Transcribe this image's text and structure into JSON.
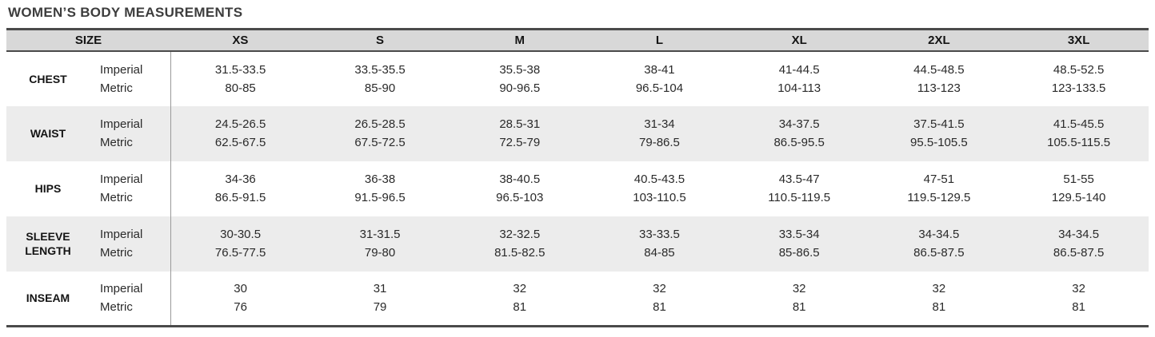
{
  "title": "WOMEN’S BODY MEASUREMENTS",
  "table": {
    "size_header": "SIZE",
    "sizes": [
      "XS",
      "S",
      "M",
      "L",
      "XL",
      "2XL",
      "3XL"
    ],
    "unit_labels": {
      "imperial": "Imperial",
      "metric": "Metric"
    },
    "rows": [
      {
        "label": "CHEST",
        "imperial": [
          "31.5-33.5",
          "33.5-35.5",
          "35.5-38",
          "38-41",
          "41-44.5",
          "44.5-48.5",
          "48.5-52.5"
        ],
        "metric": [
          "80-85",
          "85-90",
          "90-96.5",
          "96.5-104",
          "104-113",
          "113-123",
          "123-133.5"
        ]
      },
      {
        "label": "WAIST",
        "imperial": [
          "24.5-26.5",
          "26.5-28.5",
          "28.5-31",
          "31-34",
          "34-37.5",
          "37.5-41.5",
          "41.5-45.5"
        ],
        "metric": [
          "62.5-67.5",
          "67.5-72.5",
          "72.5-79",
          "79-86.5",
          "86.5-95.5",
          "95.5-105.5",
          "105.5-115.5"
        ]
      },
      {
        "label": "HIPS",
        "imperial": [
          "34-36",
          "36-38",
          "38-40.5",
          "40.5-43.5",
          "43.5-47",
          "47-51",
          "51-55"
        ],
        "metric": [
          "86.5-91.5",
          "91.5-96.5",
          "96.5-103",
          "103-110.5",
          "110.5-119.5",
          "119.5-129.5",
          "129.5-140"
        ]
      },
      {
        "label": "SLEEVE LENGTH",
        "imperial": [
          "30-30.5",
          "31-31.5",
          "32-32.5",
          "33-33.5",
          "33.5-34",
          "34-34.5",
          "34-34.5"
        ],
        "metric": [
          "76.5-77.5",
          "79-80",
          "81.5-82.5",
          "84-85",
          "85-86.5",
          "86.5-87.5",
          "86.5-87.5"
        ]
      },
      {
        "label": "INSEAM",
        "imperial": [
          "30",
          "31",
          "32",
          "32",
          "32",
          "32",
          "32"
        ],
        "metric": [
          "76",
          "79",
          "81",
          "81",
          "81",
          "81",
          "81"
        ]
      }
    ]
  },
  "colors": {
    "header_bg": "#d8d8d8",
    "stripe_bg": "#ececec",
    "border_dark": "#4a4a4a",
    "divider": "#9a9a9a",
    "title_text": "#3d3d3d",
    "body_text": "#2a2a2a"
  }
}
